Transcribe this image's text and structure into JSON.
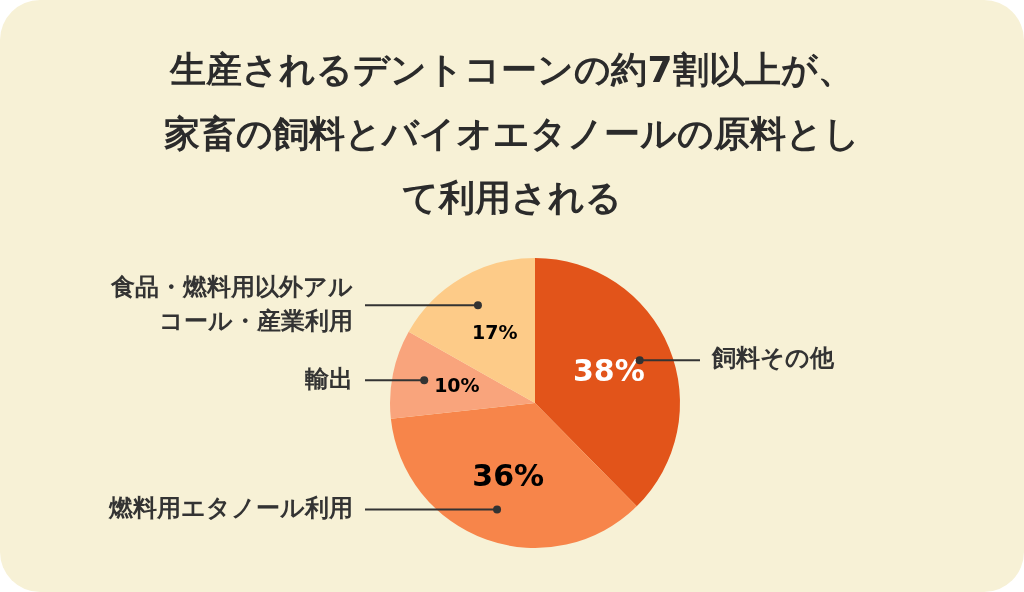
{
  "chart_data": {
    "type": "pie",
    "title": "生産されるデントコーンの約7割以上が、家畜の飼料とバイオエタノールの原料として利用される",
    "categories": [
      "飼料その他",
      "燃料用エタノール利用",
      "輸出",
      "食品・燃料用以外アルコール・産業利用"
    ],
    "values": [
      38,
      36,
      10,
      17
    ],
    "value_labels": [
      "38%",
      "36%",
      "10%",
      "17%"
    ],
    "colors": [
      "#e2541a",
      "#f7854a",
      "#f9a47c",
      "#fdcb88"
    ],
    "legend": false
  }
}
